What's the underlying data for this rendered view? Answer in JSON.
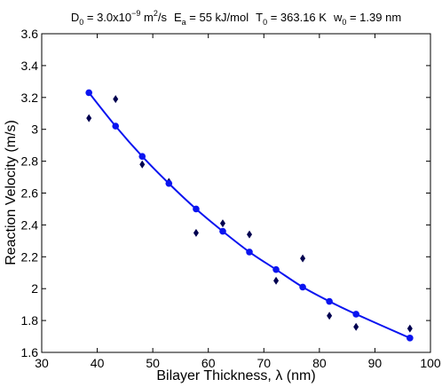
{
  "chart_data": {
    "type": "scatter",
    "title": {
      "d0_label": "D",
      "d0_sub": "0",
      "d0_value": " = 3.0x10",
      "d0_exp": "−9",
      "d0_unit": " m",
      "d0_unit_exp": "2",
      "d0_unit_tail": "/s",
      "ea_label": "E",
      "ea_sub": "a",
      "ea_value": " = 55 kJ/mol",
      "t0_label": "T",
      "t0_sub": "0",
      "t0_value": " = 363.16 K",
      "w0_label": "w",
      "w0_sub": "0",
      "w0_value": " = 1.39 nm"
    },
    "xlabel": "Bilayer Thickness, λ (nm)",
    "ylabel": "Reaction Velocity (m/s)",
    "xlim": [
      30,
      100
    ],
    "ylim": [
      1.6,
      3.6
    ],
    "xticks": [
      30,
      40,
      50,
      60,
      70,
      80,
      90,
      100
    ],
    "yticks": [
      1.6,
      1.8,
      2.0,
      2.2,
      2.4,
      2.6,
      2.8,
      3.0,
      3.2,
      3.4,
      3.6
    ],
    "xtick_labels": [
      "30",
      "40",
      "50",
      "60",
      "70",
      "80",
      "90",
      "100"
    ],
    "ytick_labels": [
      "1.6",
      "1.8",
      "2",
      "2.2",
      "2.4",
      "2.6",
      "2.8",
      "3",
      "3.2",
      "3.4",
      "3.6"
    ],
    "grid": false,
    "series": [
      {
        "kind": "markers-diamond",
        "color": "#000050",
        "points": [
          [
            38.5,
            3.07
          ],
          [
            43.3,
            3.19
          ],
          [
            48.1,
            2.78
          ],
          [
            52.9,
            2.67
          ],
          [
            57.8,
            2.35
          ],
          [
            62.6,
            2.41
          ],
          [
            67.4,
            2.34
          ],
          [
            72.2,
            2.05
          ],
          [
            77.0,
            2.19
          ],
          [
            81.8,
            1.83
          ],
          [
            86.6,
            1.76
          ],
          [
            96.3,
            1.75
          ]
        ]
      },
      {
        "kind": "line-with-markers",
        "color": "#0a14f0",
        "points": [
          [
            38.5,
            3.23
          ],
          [
            43.3,
            3.02
          ],
          [
            48.1,
            2.83
          ],
          [
            52.9,
            2.66
          ],
          [
            57.8,
            2.5
          ],
          [
            62.6,
            2.36
          ],
          [
            67.4,
            2.23
          ],
          [
            72.2,
            2.12
          ],
          [
            77.0,
            2.01
          ],
          [
            81.8,
            1.92
          ],
          [
            86.6,
            1.84
          ],
          [
            96.3,
            1.69
          ]
        ]
      }
    ]
  }
}
